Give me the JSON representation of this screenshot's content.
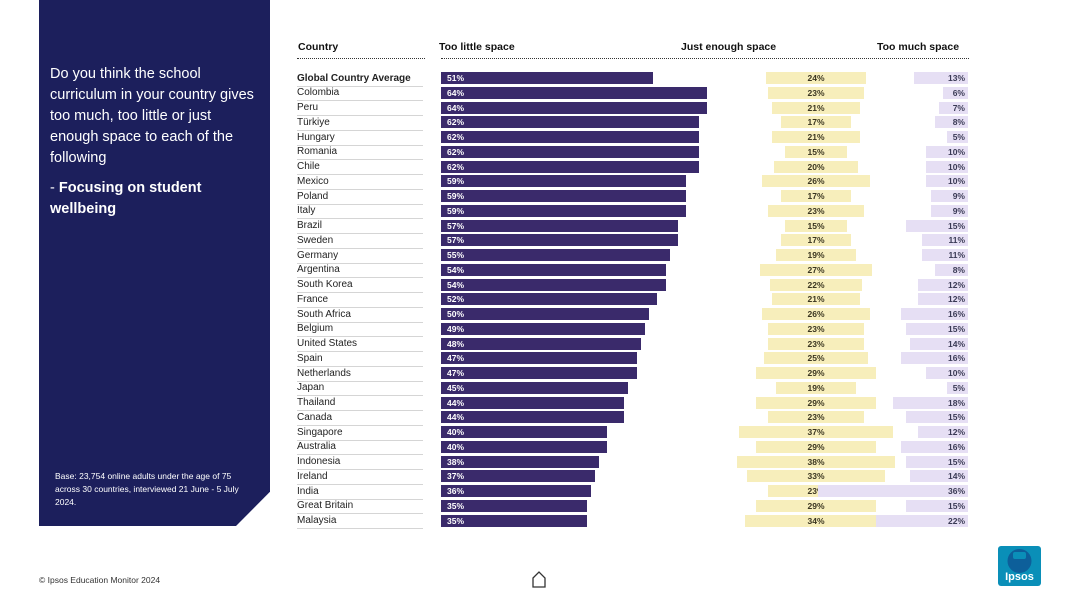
{
  "sidebar": {
    "question": "Do you think the school curriculum in  your country gives too much, too little or just enough space to each of the following",
    "focus_prefix": " - ",
    "focus_label": "Focusing on student wellbeing",
    "base_note": "Base: 23,754 online adults under the age of 75 across 30 countries, interviewed 21 June - 5 July 2024."
  },
  "headers": {
    "country": "Country",
    "too_little": "Too little space",
    "just_enough": "Just enough space",
    "too_much": "Too much space"
  },
  "footer": {
    "copyright": "© Ipsos Education Monitor 2024"
  },
  "logo": {
    "text": "Ipsos"
  },
  "icons": {
    "home": "home-icon"
  },
  "colors": {
    "sidebar": "#1c1f5c",
    "too_little": "#3a2a6b",
    "just_enough": "#f7eebb",
    "too_much": "#e6dff4"
  },
  "chart_data": {
    "type": "bar",
    "layout": "stacked-diverging",
    "unit": "%",
    "series": [
      {
        "name": "Too little space",
        "key": "little"
      },
      {
        "name": "Just enough space",
        "key": "enough"
      },
      {
        "name": "Too much space",
        "key": "much"
      }
    ],
    "rows": [
      {
        "country": "Global Country Average",
        "little": 51,
        "enough": 24,
        "much": 13
      },
      {
        "country": "Colombia",
        "little": 64,
        "enough": 23,
        "much": 6
      },
      {
        "country": "Peru",
        "little": 64,
        "enough": 21,
        "much": 7
      },
      {
        "country": "Türkiye",
        "little": 62,
        "enough": 17,
        "much": 8
      },
      {
        "country": "Hungary",
        "little": 62,
        "enough": 21,
        "much": 5
      },
      {
        "country": "Romania",
        "little": 62,
        "enough": 15,
        "much": 10
      },
      {
        "country": "Chile",
        "little": 62,
        "enough": 20,
        "much": 10
      },
      {
        "country": "Mexico",
        "little": 59,
        "enough": 26,
        "much": 10
      },
      {
        "country": "Poland",
        "little": 59,
        "enough": 17,
        "much": 9
      },
      {
        "country": "Italy",
        "little": 59,
        "enough": 23,
        "much": 9
      },
      {
        "country": "Brazil",
        "little": 57,
        "enough": 15,
        "much": 15
      },
      {
        "country": "Sweden",
        "little": 57,
        "enough": 17,
        "much": 11
      },
      {
        "country": "Germany",
        "little": 55,
        "enough": 19,
        "much": 11
      },
      {
        "country": "Argentina",
        "little": 54,
        "enough": 27,
        "much": 8
      },
      {
        "country": "South Korea",
        "little": 54,
        "enough": 22,
        "much": 12
      },
      {
        "country": "France",
        "little": 52,
        "enough": 21,
        "much": 12
      },
      {
        "country": "South Africa",
        "little": 50,
        "enough": 26,
        "much": 16
      },
      {
        "country": "Belgium",
        "little": 49,
        "enough": 23,
        "much": 15
      },
      {
        "country": "United States",
        "little": 48,
        "enough": 23,
        "much": 14
      },
      {
        "country": "Spain",
        "little": 47,
        "enough": 25,
        "much": 16
      },
      {
        "country": "Netherlands",
        "little": 47,
        "enough": 29,
        "much": 10
      },
      {
        "country": "Japan",
        "little": 45,
        "enough": 19,
        "much": 5
      },
      {
        "country": "Thailand",
        "little": 44,
        "enough": 29,
        "much": 18
      },
      {
        "country": "Canada",
        "little": 44,
        "enough": 23,
        "much": 15
      },
      {
        "country": "Singapore",
        "little": 40,
        "enough": 37,
        "much": 12
      },
      {
        "country": "Australia",
        "little": 40,
        "enough": 29,
        "much": 16
      },
      {
        "country": "Indonesia",
        "little": 38,
        "enough": 38,
        "much": 15
      },
      {
        "country": "Ireland",
        "little": 37,
        "enough": 33,
        "much": 14
      },
      {
        "country": "India",
        "little": 36,
        "enough": 23,
        "much": 36
      },
      {
        "country": "Great Britain",
        "little": 35,
        "enough": 29,
        "much": 15
      },
      {
        "country": "Malaysia",
        "little": 35,
        "enough": 34,
        "much": 22
      }
    ]
  }
}
